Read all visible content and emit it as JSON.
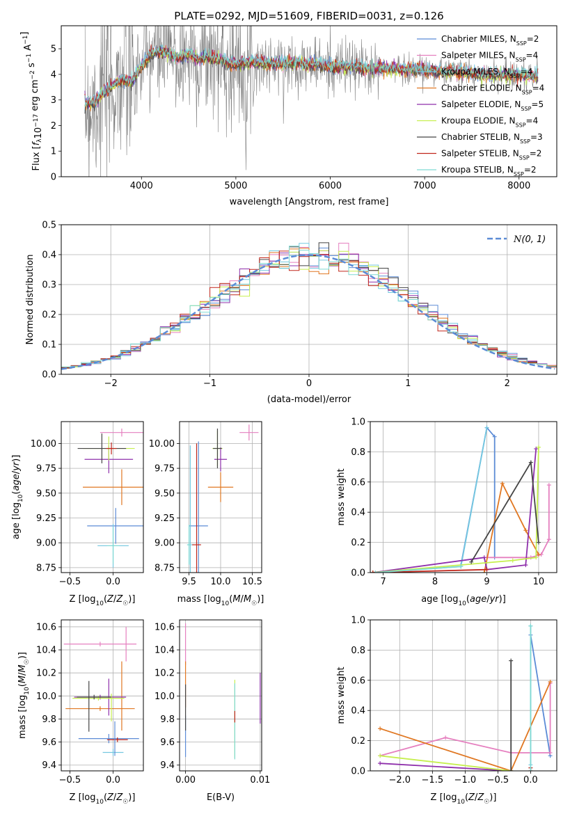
{
  "figure": {
    "title": "PLATE=0292, MJD=51609, FIBERID=0031, z=0.126"
  },
  "colors": {
    "chabrier_miles": "#5b8bd6",
    "salpeter_miles": "#e57fbf",
    "kroupa_miles": "#74c8e0",
    "chabrier_elodie": "#444444",
    "salpeter_elodie": "#8e2fab",
    "kroupa_elodie": "#c6ef4f",
    "chabrier_stelib": "#555555",
    "salpeter_stelib": "#c0261b",
    "kroupa_stelib": "#7fd9d3",
    "orange": "#e07722",
    "data_grey": "#808080"
  },
  "chart_data": [
    {
      "id": "spectrum",
      "type": "line",
      "title": "PLATE=0292, MJD=51609, FIBERID=0031, z=0.126",
      "xlabel": "wavelength [Angstrom, rest frame]",
      "ylabel": "Flux [fλ10⁻¹⁷ erg cm⁻² s⁻¹ A⁻¹]",
      "xlim": [
        3150,
        8400
      ],
      "ylim": [
        0,
        5.9
      ],
      "xticks": [
        "4000",
        "5000",
        "6000",
        "7000",
        "8000"
      ],
      "yticks": [
        "0",
        "1",
        "2",
        "3",
        "4",
        "5"
      ],
      "grid": false,
      "legend_position": "top-right",
      "continuum": {
        "x": [
          3400,
          3500,
          3600,
          3700,
          3800,
          3900,
          4000,
          4100,
          4200,
          4300,
          4400,
          4500,
          4600,
          4700,
          4800,
          4900,
          5000,
          5200,
          5400,
          5600,
          5800,
          6000,
          6200,
          6400,
          6600,
          6800,
          7000,
          7200,
          7400,
          7600,
          7800,
          8000,
          8200
        ],
        "y": [
          2.9,
          2.9,
          3.3,
          3.6,
          3.8,
          3.7,
          4.3,
          4.8,
          4.9,
          4.8,
          4.6,
          4.8,
          4.6,
          4.7,
          4.6,
          4.5,
          4.4,
          4.5,
          4.4,
          4.45,
          4.4,
          4.3,
          4.3,
          4.25,
          4.2,
          4.2,
          4.2,
          4.1,
          4.1,
          4.0,
          4.0,
          4.0,
          3.9
        ]
      },
      "series": [
        {
          "name": "Chabrier MILES, N_SSP=2",
          "color": "#5b8bd6",
          "offset": 0.0
        },
        {
          "name": "Salpeter MILES, N_SSP=4",
          "color": "#e57fbf",
          "offset": -0.02
        },
        {
          "name": "Kroupa MILES, N_SSP=4",
          "color": "#74c8e0",
          "offset": 0.05
        },
        {
          "name": "Chabrier ELODIE, N_SSP=4",
          "color": "#e07722",
          "offset": -0.04
        },
        {
          "name": "Salpeter ELODIE, N_SSP=5",
          "color": "#8e2fab",
          "offset": 0.02
        },
        {
          "name": "Kroupa ELODIE, N_SSP=4",
          "color": "#c6ef4f",
          "offset": -0.03
        },
        {
          "name": "Chabrier STELIB, N_SSP=3",
          "color": "#444444",
          "offset": -0.06
        },
        {
          "name": "Salpeter STELIB, N_SSP=2",
          "color": "#c0261b",
          "offset": 0.03
        },
        {
          "name": "Kroupa STELIB, N_SSP=2",
          "color": "#7fd9d3",
          "offset": 0.06
        }
      ]
    },
    {
      "id": "residuals",
      "type": "line",
      "xlabel": "(data-model)/error",
      "ylabel": "Normed distribution",
      "xlim": [
        -2.5,
        2.5
      ],
      "ylim": [
        0,
        0.5
      ],
      "xticks": [
        "−2",
        "−1",
        "0",
        "1",
        "2"
      ],
      "yticks": [
        "0.0",
        "0.1",
        "0.2",
        "0.3",
        "0.4",
        "0.5"
      ],
      "grid": true,
      "legend_position": "top-right",
      "legend": "N(0, 1)",
      "bin_width": 0.1,
      "histogram_colors": [
        "#5b8bd6",
        "#e57fbf",
        "#74c8e0",
        "#e07722",
        "#8e2fab",
        "#c6ef4f",
        "#444444",
        "#c0261b",
        "#7fd9d3"
      ]
    },
    {
      "id": "age_vs_z",
      "type": "scatter",
      "xlabel": "Z [log10(Z/Z☉)]",
      "ylabel": "age  [log10(age/yr)]",
      "xlim": [
        -0.6,
        0.35
      ],
      "ylim": [
        8.7,
        10.22
      ],
      "xticks": [
        "−0.5",
        "0.0"
      ],
      "yticks": [
        "8.75",
        "9.00",
        "9.25",
        "9.50",
        "9.75",
        "10.00"
      ],
      "grid": true,
      "points": [
        {
          "x": 0.03,
          "y": 9.17,
          "xerr": 0.33,
          "yerr": 0.18,
          "color": "#5b8bd6"
        },
        {
          "x": 0.1,
          "y": 10.11,
          "xerr": 0.25,
          "yerr": 0.04,
          "color": "#e57fbf"
        },
        {
          "x": 0.0,
          "y": 8.97,
          "xerr": 0.18,
          "yerr": 0.22,
          "color": "#74c8e0"
        },
        {
          "x": 0.1,
          "y": 9.56,
          "xerr": 0.45,
          "yerr": 0.18,
          "color": "#e07722"
        },
        {
          "x": -0.05,
          "y": 9.84,
          "xerr": 0.28,
          "yerr": 0.14,
          "color": "#8e2fab"
        },
        {
          "x": -0.05,
          "y": 9.95,
          "xerr": 0.3,
          "yerr": 0.12,
          "color": "#c6ef4f"
        },
        {
          "x": -0.13,
          "y": 9.95,
          "xerr": 0.28,
          "yerr": 0.15,
          "color": "#444444"
        },
        {
          "x": -0.02,
          "y": 9.95,
          "xerr": 0.06,
          "yerr": 0.06,
          "color": "#c0261b"
        },
        {
          "x": 0.0,
          "y": 8.97,
          "xerr": 0.07,
          "yerr": 0.18,
          "color": "#7fd9d3"
        }
      ]
    },
    {
      "id": "age_vs_mass",
      "type": "scatter",
      "xlabel": "mass [log10(M/M☉)]",
      "ylabel": "",
      "xlim": [
        9.35,
        10.65
      ],
      "ylim": [
        8.7,
        10.22
      ],
      "xticks": [
        "9.5",
        "10.0",
        "10.5"
      ],
      "yticks": [
        "8.75",
        "9.00",
        "9.25",
        "9.50",
        "9.75",
        "10.00"
      ],
      "grid": true,
      "points": [
        {
          "x": 9.65,
          "y": 9.17,
          "xerr": 0.15,
          "yerr": 0.85,
          "color": "#5b8bd6"
        },
        {
          "x": 10.45,
          "y": 10.11,
          "xerr": 0.15,
          "yerr": 0.08,
          "color": "#e57fbf"
        },
        {
          "x": 9.52,
          "y": 8.98,
          "xerr": 0.05,
          "yerr": 1.0,
          "color": "#74c8e0"
        },
        {
          "x": 10.0,
          "y": 9.56,
          "xerr": 0.2,
          "yerr": 0.15,
          "color": "#e07722"
        },
        {
          "x": 10.0,
          "y": 9.84,
          "xerr": 0.1,
          "yerr": 0.12,
          "color": "#8e2fab"
        },
        {
          "x": 9.95,
          "y": 9.95,
          "xerr": 0.08,
          "yerr": 0.18,
          "color": "#c6ef4f"
        },
        {
          "x": 9.95,
          "y": 9.95,
          "xerr": 0.07,
          "yerr": 0.2,
          "color": "#444444"
        },
        {
          "x": 9.62,
          "y": 8.98,
          "xerr": 0.07,
          "yerr": 1.02,
          "color": "#c0261b"
        },
        {
          "x": 9.5,
          "y": 8.98,
          "xerr": 0.03,
          "yerr": 0.2,
          "color": "#7fd9d3"
        }
      ]
    },
    {
      "id": "weight_vs_age",
      "type": "line",
      "xlabel": "age  [log10(age/yr)]",
      "ylabel": "mass weight",
      "xlim": [
        6.75,
        10.35
      ],
      "ylim": [
        0,
        1.0
      ],
      "xticks": [
        "7",
        "8",
        "9",
        "10"
      ],
      "yticks": [
        "0.0",
        "0.2",
        "0.4",
        "0.6",
        "0.8",
        "1.0"
      ],
      "grid": true,
      "series": [
        {
          "color": "#5b8bd6",
          "x": [
            8.5,
            9.0,
            9.15,
            9.15
          ],
          "y": [
            0.05,
            0.96,
            0.9,
            0.1
          ]
        },
        {
          "color": "#e57fbf",
          "x": [
            9.0,
            9.85,
            10.05,
            10.2,
            10.2
          ],
          "y": [
            0.1,
            0.1,
            0.12,
            0.22,
            0.58
          ]
        },
        {
          "color": "#74c8e0",
          "x": [
            6.8,
            8.5,
            9.0
          ],
          "y": [
            0.0,
            0.04,
            0.96
          ]
        },
        {
          "color": "#e07722",
          "x": [
            8.95,
            9.3,
            9.75,
            10.0
          ],
          "y": [
            0.0,
            0.59,
            0.28,
            0.12
          ]
        },
        {
          "color": "#8e2fab",
          "x": [
            6.8,
            8.95,
            9.0,
            9.75,
            9.95
          ],
          "y": [
            0.0,
            0.1,
            0.02,
            0.05,
            0.82
          ]
        },
        {
          "color": "#c6ef4f",
          "x": [
            6.8,
            9.5,
            9.95,
            10.0
          ],
          "y": [
            0.0,
            0.08,
            0.1,
            0.83
          ]
        },
        {
          "color": "#444444",
          "x": [
            8.7,
            9.85,
            10.0
          ],
          "y": [
            0.07,
            0.73,
            0.2
          ]
        },
        {
          "color": "#c0261b",
          "x": [
            6.8,
            9.0
          ],
          "y": [
            0.0,
            0.02
          ]
        },
        {
          "color": "#7fd9d3",
          "x": [
            6.85,
            8.5
          ],
          "y": [
            0.0,
            0.04
          ]
        }
      ]
    },
    {
      "id": "mass_vs_z",
      "type": "scatter",
      "xlabel": "Z [log10(Z/Z☉)]",
      "ylabel": "mass [log10(M/M☉)]",
      "xlim": [
        -0.6,
        0.35
      ],
      "ylim": [
        9.35,
        10.66
      ],
      "xticks": [
        "−0.5",
        "0.0"
      ],
      "yticks": [
        "9.4",
        "9.6",
        "9.8",
        "10.0",
        "10.2",
        "10.4",
        "10.6"
      ],
      "grid": true,
      "points": [
        {
          "x": -0.05,
          "y": 9.63,
          "xerr": 0.35,
          "yerr": 0.04,
          "color": "#5b8bd6"
        },
        {
          "x": -0.15,
          "y": 10.45,
          "xerr": 0.42,
          "yerr": 0.02,
          "color": "#e57fbf"
        },
        {
          "x": 0.15,
          "y": 10.45,
          "xerr": 0.0,
          "yerr": 0.15,
          "color": "#e57fbf"
        },
        {
          "x": 0.0,
          "y": 9.51,
          "xerr": 0.12,
          "yerr": 0.03,
          "color": "#74c8e0"
        },
        {
          "x": -0.15,
          "y": 9.89,
          "xerr": 0.4,
          "yerr": 0.02,
          "color": "#e07722"
        },
        {
          "x": 0.1,
          "y": 10.0,
          "xerr": 0.0,
          "yerr": 0.3,
          "color": "#e07722"
        },
        {
          "x": -0.15,
          "y": 9.99,
          "xerr": 0.3,
          "yerr": 0.02,
          "color": "#8e2fab"
        },
        {
          "x": -0.05,
          "y": 9.99,
          "xerr": 0.0,
          "yerr": 0.16,
          "color": "#8e2fab"
        },
        {
          "x": -0.17,
          "y": 9.98,
          "xerr": 0.3,
          "yerr": 0.02,
          "color": "#c6ef4f"
        },
        {
          "x": -0.02,
          "y": 9.9,
          "xerr": 0.0,
          "yerr": 0.12,
          "color": "#c6ef4f"
        },
        {
          "x": -0.22,
          "y": 9.99,
          "xerr": 0.2,
          "yerr": 0.02,
          "color": "#444444"
        },
        {
          "x": -0.28,
          "y": 9.91,
          "xerr": 0.0,
          "yerr": 0.22,
          "color": "#444444"
        },
        {
          "x": 0.05,
          "y": 9.62,
          "xerr": 0.12,
          "yerr": 0.02,
          "color": "#c0261b"
        },
        {
          "x": 0.02,
          "y": 9.63,
          "xerr": 0.0,
          "yerr": 0.15,
          "color": "#5b8bd6"
        }
      ]
    },
    {
      "id": "mass_vs_ebv",
      "type": "scatter",
      "xlabel": "E(B-V)",
      "ylabel": "",
      "xlim": [
        -0.0008,
        0.0102
      ],
      "ylim": [
        9.35,
        10.66
      ],
      "xticks": [
        "0.00",
        "0.01"
      ],
      "yticks": [
        "9.4",
        "9.6",
        "9.8",
        "10.0",
        "10.2",
        "10.4",
        "10.6"
      ],
      "grid": true,
      "points": [
        {
          "x": 0.0,
          "y": 9.65,
          "xerr": 0,
          "yerr": 0.18,
          "color": "#5b8bd6"
        },
        {
          "x": 0.0,
          "y": 10.45,
          "xerr": 0,
          "yerr": 0.18,
          "color": "#e57fbf"
        },
        {
          "x": 0.0,
          "y": 10.1,
          "xerr": 0,
          "yerr": 0.2,
          "color": "#e07722"
        },
        {
          "x": 0.0,
          "y": 9.9,
          "xerr": 0,
          "yerr": 0.2,
          "color": "#444444"
        },
        {
          "x": 0.0066,
          "y": 9.8,
          "xerr": 0,
          "yerr": 0.34,
          "color": "#c6ef4f"
        },
        {
          "x": 0.0066,
          "y": 9.78,
          "xerr": 0,
          "yerr": 0.33,
          "color": "#7fd9d3"
        },
        {
          "x": 0.0066,
          "y": 9.82,
          "xerr": 0,
          "yerr": 0.05,
          "color": "#c0261b"
        },
        {
          "x": 0.01,
          "y": 9.98,
          "xerr": 0,
          "yerr": 0.22,
          "color": "#8e2fab"
        }
      ]
    },
    {
      "id": "weight_vs_z",
      "type": "line",
      "xlabel": "Z [log10(Z/Z☉)]",
      "ylabel": "mass weight",
      "xlim": [
        -2.45,
        0.4
      ],
      "ylim": [
        0,
        1.0
      ],
      "xticks": [
        "−2.0",
        "−1.5",
        "−1.0",
        "−0.5",
        "0.0"
      ],
      "yticks": [
        "0.0",
        "0.2",
        "0.4",
        "0.6",
        "0.8",
        "1.0"
      ],
      "grid": true,
      "series": [
        {
          "color": "#5b8bd6",
          "x": [
            0.0,
            0.3
          ],
          "y": [
            0.9,
            0.1
          ]
        },
        {
          "color": "#e57fbf",
          "x": [
            -2.3,
            -1.3,
            -0.3,
            0.3,
            0.3
          ],
          "y": [
            0.1,
            0.22,
            0.12,
            0.12,
            0.58
          ]
        },
        {
          "color": "#74c8e0",
          "x": [
            0.0,
            0.0
          ],
          "y": [
            0.04,
            0.96
          ]
        },
        {
          "color": "#e07722",
          "x": [
            -2.3,
            -0.3,
            0.3
          ],
          "y": [
            0.28,
            0.0,
            0.59
          ]
        },
        {
          "color": "#8e2fab",
          "x": [
            -2.3,
            -0.3
          ],
          "y": [
            0.05,
            0.0
          ]
        },
        {
          "color": "#c6ef4f",
          "x": [
            -2.3,
            -0.3,
            -0.3
          ],
          "y": [
            0.1,
            0.0,
            0.0
          ]
        },
        {
          "color": "#444444",
          "x": [
            -0.3,
            -0.3
          ],
          "y": [
            0.0,
            0.73
          ]
        },
        {
          "color": "#c0261b",
          "x": [
            0.0,
            0.0
          ],
          "y": [
            0.0,
            0.02
          ]
        },
        {
          "color": "#7fd9d3",
          "x": [
            0.0,
            0.0
          ],
          "y": [
            0.0,
            0.96
          ]
        }
      ]
    }
  ]
}
